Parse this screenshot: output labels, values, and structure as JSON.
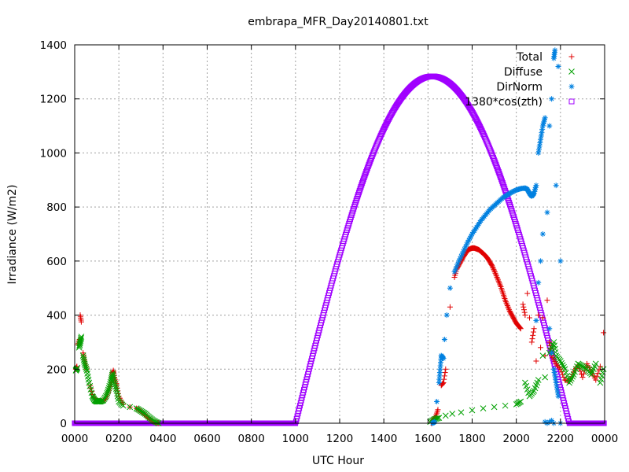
{
  "chart_data": {
    "type": "scatter",
    "title": "embrapa_MFR_Day20140801.txt",
    "xlabel": "UTC Hour",
    "ylabel": "Irradiance (W/m2)",
    "xlim": [
      0,
      24
    ],
    "ylim": [
      0,
      1400
    ],
    "x_ticks": [
      0,
      2,
      4,
      6,
      8,
      10,
      12,
      14,
      16,
      18,
      20,
      22,
      24
    ],
    "x_tick_labels": [
      "0000",
      "0200",
      "0400",
      "0600",
      "0800",
      "1000",
      "1200",
      "1400",
      "1600",
      "1800",
      "2000",
      "2200",
      "0000"
    ],
    "y_ticks": [
      0,
      200,
      400,
      600,
      800,
      1000,
      1200,
      1400
    ],
    "y_tick_labels": [
      "0",
      "200",
      "400",
      "600",
      "800",
      "1000",
      "1200",
      "1400"
    ],
    "grid": true,
    "legend_position": "top-right",
    "series": [
      {
        "name": "Total",
        "color": "#e00000",
        "marker": "plus",
        "points": [
          [
            0.05,
            200
          ],
          [
            0.1,
            210
          ],
          [
            0.15,
            290
          ],
          [
            0.22,
            310
          ],
          [
            0.25,
            400
          ],
          [
            0.3,
            375
          ],
          [
            0.38,
            260
          ],
          [
            0.45,
            230
          ],
          [
            0.55,
            200
          ],
          [
            0.7,
            140
          ],
          [
            0.85,
            95
          ],
          [
            1.0,
            85
          ],
          [
            1.2,
            80
          ],
          [
            1.4,
            90
          ],
          [
            1.55,
            120
          ],
          [
            1.65,
            150
          ],
          [
            1.7,
            180
          ],
          [
            1.75,
            195
          ],
          [
            1.8,
            170
          ],
          [
            1.9,
            140
          ],
          [
            2.0,
            100
          ],
          [
            2.2,
            70
          ],
          [
            2.5,
            60
          ],
          [
            2.8,
            55
          ],
          [
            3.0,
            45
          ],
          [
            3.2,
            30
          ],
          [
            3.4,
            15
          ],
          [
            3.6,
            5
          ],
          [
            3.8,
            0
          ],
          [
            16.15,
            0
          ],
          [
            16.25,
            15
          ],
          [
            16.35,
            25
          ],
          [
            16.45,
            50
          ],
          [
            16.6,
            140
          ],
          [
            16.7,
            150
          ],
          [
            16.8,
            200
          ],
          [
            17.0,
            430
          ],
          [
            17.2,
            540
          ],
          [
            17.3,
            570
          ],
          [
            17.4,
            585
          ],
          [
            17.5,
            600
          ],
          [
            17.6,
            615
          ],
          [
            17.7,
            628
          ],
          [
            17.8,
            640
          ],
          [
            17.9,
            645
          ],
          [
            18.0,
            648
          ],
          [
            18.1,
            648
          ],
          [
            18.2,
            645
          ],
          [
            18.3,
            642
          ],
          [
            18.4,
            635
          ],
          [
            18.5,
            628
          ],
          [
            18.6,
            620
          ],
          [
            18.7,
            610
          ],
          [
            18.8,
            597
          ],
          [
            18.9,
            583
          ],
          [
            19.0,
            565
          ],
          [
            19.1,
            545
          ],
          [
            19.2,
            525
          ],
          [
            19.3,
            505
          ],
          [
            19.4,
            480
          ],
          [
            19.5,
            455
          ],
          [
            19.6,
            435
          ],
          [
            19.7,
            415
          ],
          [
            19.8,
            400
          ],
          [
            19.9,
            385
          ],
          [
            20.0,
            370
          ],
          [
            20.1,
            360
          ],
          [
            20.2,
            350
          ],
          [
            20.3,
            440
          ],
          [
            20.4,
            400
          ],
          [
            20.5,
            480
          ],
          [
            20.6,
            390
          ],
          [
            20.7,
            300
          ],
          [
            20.8,
            350
          ],
          [
            20.9,
            230
          ],
          [
            21.0,
            400
          ],
          [
            21.1,
            280
          ],
          [
            21.2,
            390
          ],
          [
            21.3,
            250
          ],
          [
            21.4,
            455
          ],
          [
            21.5,
            300
          ],
          [
            21.6,
            250
          ],
          [
            21.8,
            220
          ],
          [
            22.0,
            200
          ],
          [
            22.2,
            160
          ],
          [
            22.4,
            155
          ],
          [
            22.6,
            190
          ],
          [
            22.8,
            215
          ],
          [
            23.0,
            170
          ],
          [
            23.2,
            220
          ],
          [
            23.4,
            190
          ],
          [
            23.6,
            160
          ],
          [
            23.8,
            210
          ],
          [
            23.95,
            335
          ]
        ]
      },
      {
        "name": "Diffuse",
        "color": "#00a000",
        "marker": "cross",
        "points": [
          [
            0.05,
            195
          ],
          [
            0.12,
            205
          ],
          [
            0.2,
            280
          ],
          [
            0.25,
            300
          ],
          [
            0.3,
            320
          ],
          [
            0.38,
            250
          ],
          [
            0.45,
            220
          ],
          [
            0.55,
            195
          ],
          [
            0.65,
            150
          ],
          [
            0.8,
            100
          ],
          [
            0.9,
            85
          ],
          [
            1.0,
            80
          ],
          [
            1.15,
            80
          ],
          [
            1.3,
            85
          ],
          [
            1.45,
            105
          ],
          [
            1.55,
            130
          ],
          [
            1.65,
            160
          ],
          [
            1.72,
            185
          ],
          [
            1.8,
            150
          ],
          [
            1.9,
            120
          ],
          [
            2.0,
            80
          ],
          [
            2.2,
            65
          ],
          [
            2.5,
            60
          ],
          [
            2.8,
            55
          ],
          [
            3.0,
            45
          ],
          [
            3.2,
            35
          ],
          [
            3.4,
            20
          ],
          [
            3.6,
            8
          ],
          [
            3.8,
            0
          ],
          [
            16.1,
            5
          ],
          [
            16.3,
            15
          ],
          [
            16.5,
            20
          ],
          [
            16.8,
            28
          ],
          [
            17.1,
            35
          ],
          [
            17.5,
            40
          ],
          [
            18.0,
            48
          ],
          [
            18.5,
            55
          ],
          [
            19.0,
            60
          ],
          [
            19.5,
            65
          ],
          [
            20.0,
            70
          ],
          [
            20.2,
            80
          ],
          [
            20.4,
            150
          ],
          [
            20.6,
            100
          ],
          [
            20.8,
            120
          ],
          [
            21.0,
            160
          ],
          [
            21.2,
            250
          ],
          [
            21.3,
            170
          ],
          [
            21.5,
            260
          ],
          [
            21.7,
            300
          ],
          [
            21.8,
            250
          ],
          [
            22.0,
            230
          ],
          [
            22.2,
            200
          ],
          [
            22.4,
            150
          ],
          [
            22.6,
            180
          ],
          [
            22.8,
            220
          ],
          [
            23.0,
            210
          ],
          [
            23.2,
            200
          ],
          [
            23.4,
            180
          ],
          [
            23.6,
            220
          ],
          [
            23.8,
            150
          ],
          [
            23.95,
            200
          ]
        ]
      },
      {
        "name": "DirNorm",
        "color": "#0080e0",
        "marker": "star",
        "points": [
          [
            16.2,
            0
          ],
          [
            16.3,
            5
          ],
          [
            16.4,
            80
          ],
          [
            16.5,
            150
          ],
          [
            16.55,
            200
          ],
          [
            16.6,
            250
          ],
          [
            16.7,
            240
          ],
          [
            16.75,
            310
          ],
          [
            16.85,
            400
          ],
          [
            17.0,
            500
          ],
          [
            17.2,
            560
          ],
          [
            17.4,
            600
          ],
          [
            17.6,
            635
          ],
          [
            17.8,
            670
          ],
          [
            18.0,
            700
          ],
          [
            18.2,
            725
          ],
          [
            18.4,
            750
          ],
          [
            18.6,
            770
          ],
          [
            18.8,
            790
          ],
          [
            19.0,
            805
          ],
          [
            19.2,
            820
          ],
          [
            19.4,
            835
          ],
          [
            19.6,
            845
          ],
          [
            19.8,
            855
          ],
          [
            20.0,
            863
          ],
          [
            20.2,
            868
          ],
          [
            20.4,
            870
          ],
          [
            20.5,
            865
          ],
          [
            20.6,
            850
          ],
          [
            20.7,
            840
          ],
          [
            20.8,
            850
          ],
          [
            20.9,
            880
          ],
          [
            21.0,
            1000
          ],
          [
            21.1,
            1050
          ],
          [
            21.2,
            1100
          ],
          [
            21.3,
            1130
          ],
          [
            21.4,
            780
          ],
          [
            21.5,
            1100
          ],
          [
            21.6,
            1200
          ],
          [
            21.7,
            1350
          ],
          [
            21.75,
            1380
          ],
          [
            21.8,
            880
          ],
          [
            21.9,
            1320
          ],
          [
            22.0,
            600
          ],
          [
            21.2,
            700
          ],
          [
            21.1,
            600
          ],
          [
            21.0,
            520
          ],
          [
            20.9,
            380
          ],
          [
            21.5,
            350
          ],
          [
            21.6,
            260
          ],
          [
            21.7,
            200
          ],
          [
            21.8,
            150
          ],
          [
            21.9,
            100
          ],
          [
            21.6,
            10
          ],
          [
            21.5,
            5
          ],
          [
            21.4,
            0
          ],
          [
            21.3,
            5
          ],
          [
            21.7,
            0
          ],
          [
            22.0,
            0
          ]
        ]
      },
      {
        "name": "1380*cos(zth)",
        "color": "#a000ff",
        "marker": "square",
        "curve": {
          "amplitude": 1380,
          "peak_x": 16.2,
          "half_width": 6.2
        },
        "points": [
          [
            0,
            0
          ],
          [
            10.0,
            0
          ],
          [
            10.3,
            70
          ],
          [
            10.7,
            200
          ],
          [
            11.2,
            360
          ],
          [
            12.0,
            620
          ],
          [
            12.8,
            830
          ],
          [
            13.6,
            1020
          ],
          [
            14.4,
            1150
          ],
          [
            15.2,
            1240
          ],
          [
            15.8,
            1278
          ],
          [
            16.2,
            1285
          ],
          [
            16.6,
            1278
          ],
          [
            17.2,
            1240
          ],
          [
            18.0,
            1130
          ],
          [
            18.8,
            980
          ],
          [
            19.6,
            790
          ],
          [
            20.4,
            560
          ],
          [
            21.2,
            320
          ],
          [
            21.8,
            130
          ],
          [
            22.2,
            30
          ],
          [
            22.4,
            0
          ],
          [
            24,
            0
          ]
        ]
      }
    ]
  }
}
